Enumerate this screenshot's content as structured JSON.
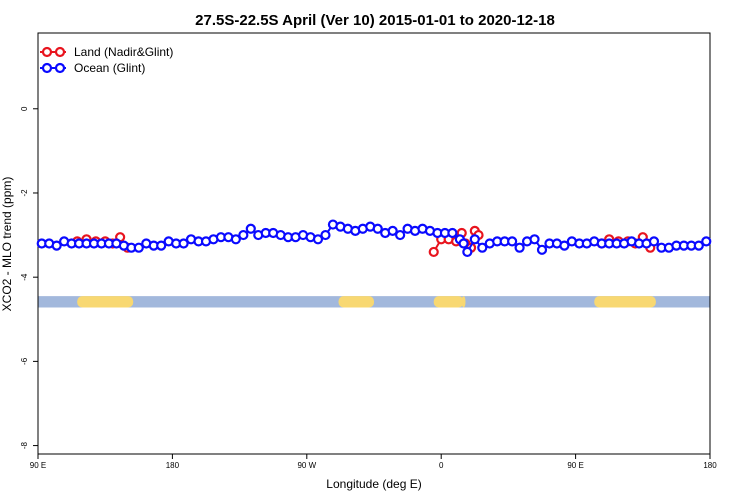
{
  "chart_data": {
    "type": "line",
    "title": "27.5S-22.5S April (Ver 10)   2015-01-01 to 2020-12-18",
    "xlabel": "Longitude (deg E)",
    "ylabel": "XCO2 - MLO trend (ppm)",
    "xlim": [
      90,
      450
    ],
    "ylim": [
      -8.2,
      1.8
    ],
    "x_ticks": [
      {
        "value": 90,
        "label": "90 E"
      },
      {
        "value": 162,
        "label": "180"
      },
      {
        "value": 234,
        "label": "90 W"
      },
      {
        "value": 306,
        "label": "0"
      },
      {
        "value": 378,
        "label": "90 E"
      },
      {
        "value": 450,
        "label": "180"
      }
    ],
    "y_ticks": [
      {
        "value": 0,
        "label": "0"
      },
      {
        "value": -2,
        "label": "-2"
      },
      {
        "value": -4,
        "label": "-4"
      },
      {
        "value": -6,
        "label": "-6"
      },
      {
        "value": -8,
        "label": "-8"
      }
    ],
    "legend_position": "top-left",
    "land_mask": {
      "y_top": -4.45,
      "y_bottom": -4.72,
      "ocean_color": "#a2b8dc",
      "land_color": "#f8d872",
      "land_x_ranges": [
        [
          111,
          141
        ],
        [
          251,
          270
        ],
        [
          302,
          318
        ],
        [
          317,
          319
        ],
        [
          388,
          421
        ]
      ]
    },
    "series": [
      {
        "name": "Land (Nadir&Glint)",
        "color": "#e8141e",
        "x": [
          111,
          116,
          121,
          126,
          130,
          134,
          138,
          302,
          306,
          310,
          314,
          317,
          319,
          322,
          324,
          326,
          392,
          396,
          401,
          406,
          410,
          414,
          418
        ],
        "y": [
          -3.15,
          -3.1,
          -3.15,
          -3.15,
          -3.2,
          -3.05,
          -3.3,
          -3.4,
          -3.1,
          -3.1,
          -3.15,
          -2.95,
          -3.2,
          -3.3,
          -2.9,
          -3.0,
          -3.2,
          -3.1,
          -3.15,
          -3.15,
          -3.2,
          -3.05,
          -3.3
        ]
      },
      {
        "name": "Ocean (Glint)",
        "color": "#0a0aff",
        "x": [
          92,
          96,
          100,
          104,
          108,
          112,
          116,
          120,
          124,
          128,
          132,
          136,
          140,
          144,
          148,
          152,
          156,
          160,
          164,
          168,
          172,
          176,
          180,
          184,
          188,
          192,
          196,
          200,
          204,
          208,
          212,
          216,
          220,
          224,
          228,
          232,
          236,
          240,
          244,
          248,
          252,
          256,
          260,
          264,
          268,
          272,
          276,
          280,
          284,
          288,
          292,
          296,
          300,
          304,
          308,
          312,
          316,
          318,
          320,
          324,
          328,
          332,
          336,
          340,
          344,
          348,
          352,
          356,
          360,
          364,
          368,
          372,
          376,
          380,
          384,
          388,
          392,
          396,
          400,
          404,
          408,
          412,
          416,
          420,
          424,
          428,
          432,
          436,
          440,
          444,
          448
        ],
        "y": [
          -3.2,
          -3.2,
          -3.25,
          -3.15,
          -3.2,
          -3.2,
          -3.2,
          -3.2,
          -3.2,
          -3.2,
          -3.2,
          -3.25,
          -3.3,
          -3.3,
          -3.2,
          -3.25,
          -3.25,
          -3.15,
          -3.2,
          -3.2,
          -3.1,
          -3.15,
          -3.15,
          -3.1,
          -3.05,
          -3.05,
          -3.1,
          -3.0,
          -2.85,
          -3.0,
          -2.95,
          -2.95,
          -3.0,
          -3.05,
          -3.05,
          -3.0,
          -3.05,
          -3.1,
          -3.0,
          -2.75,
          -2.8,
          -2.85,
          -2.9,
          -2.85,
          -2.8,
          -2.85,
          -2.95,
          -2.9,
          -3.0,
          -2.85,
          -2.9,
          -2.85,
          -2.9,
          -2.95,
          -2.95,
          -2.95,
          -3.1,
          -3.2,
          -3.4,
          -3.1,
          -3.3,
          -3.2,
          -3.15,
          -3.15,
          -3.15,
          -3.3,
          -3.15,
          -3.1,
          -3.35,
          -3.2,
          -3.2,
          -3.25,
          -3.15,
          -3.2,
          -3.2,
          -3.15,
          -3.2,
          -3.2,
          -3.2,
          -3.2,
          -3.15,
          -3.2,
          -3.2,
          -3.15,
          -3.3,
          -3.3,
          -3.25,
          -3.25,
          -3.25,
          -3.25,
          -3.15
        ]
      }
    ]
  }
}
